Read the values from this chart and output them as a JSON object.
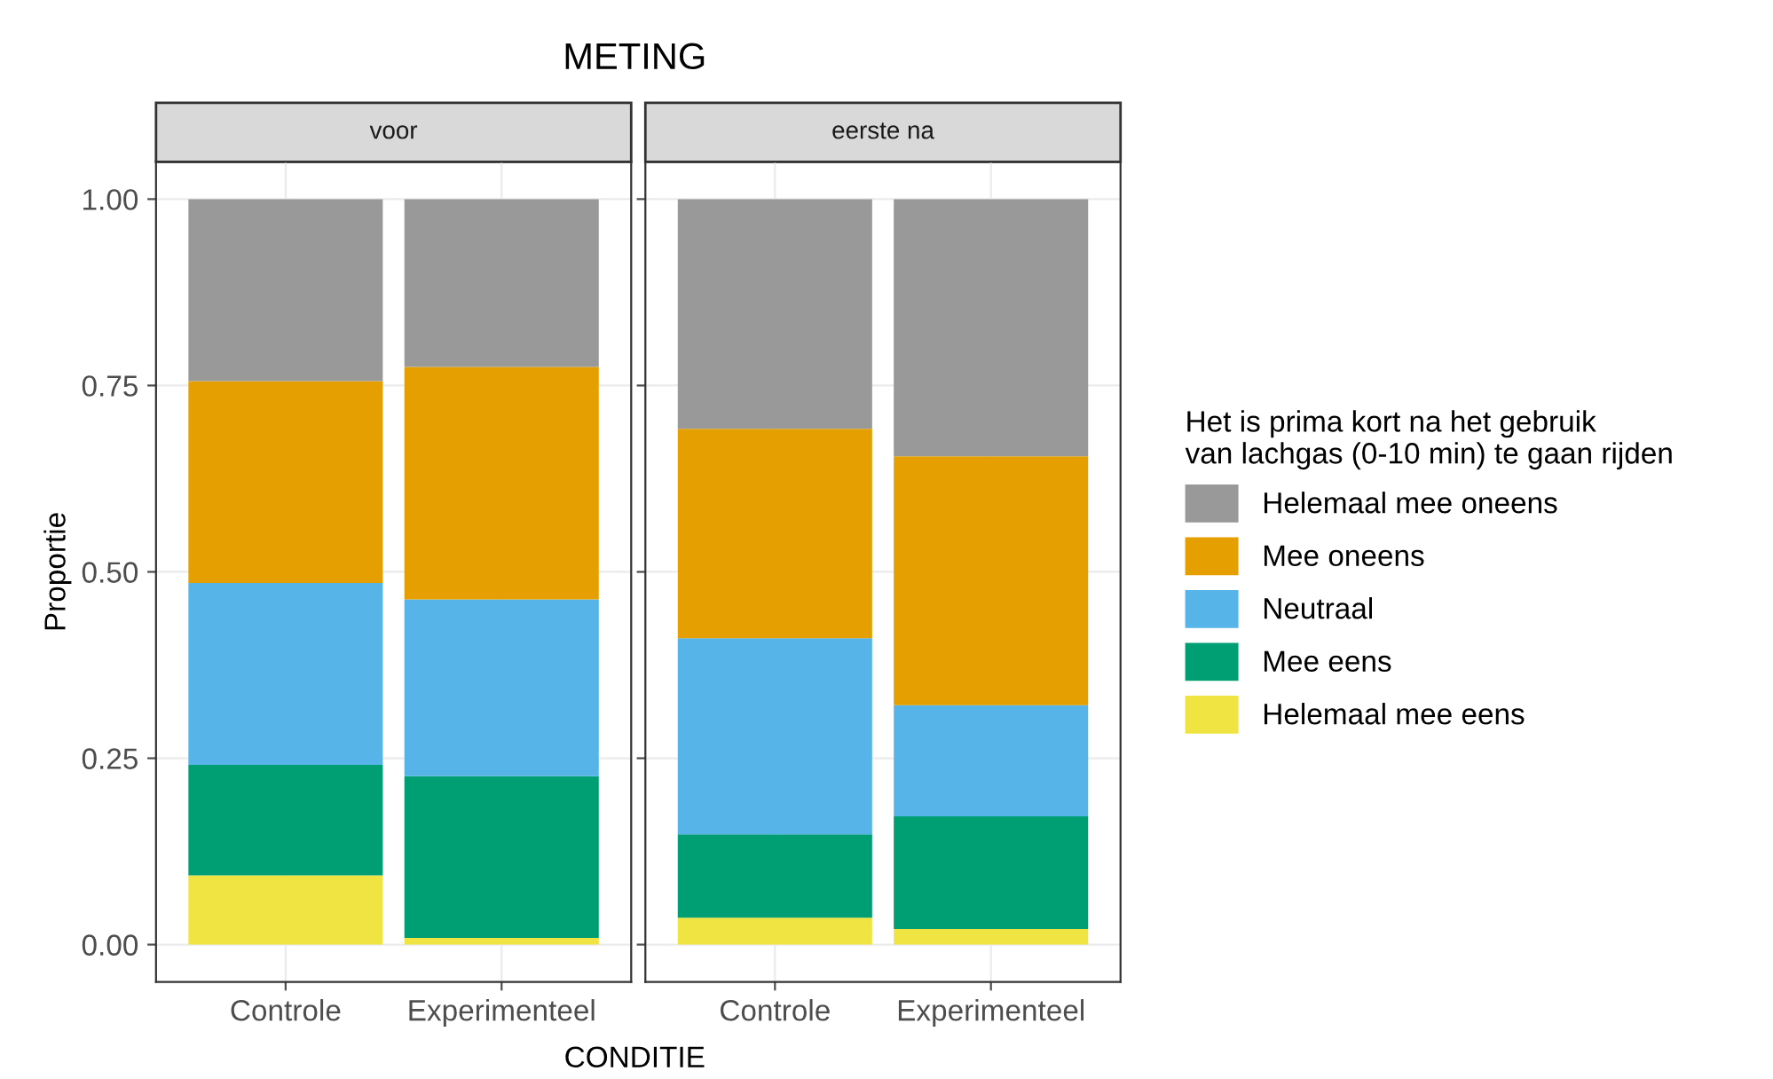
{
  "chart_data": [
    {
      "type": "bar",
      "title": "voor",
      "annotations": [
        "METING"
      ],
      "xlabel": "CONDITIE",
      "ylabel": "Proportie",
      "categories": [
        "Controle",
        "Experimenteel"
      ],
      "stacked": true,
      "ylim": [
        -0.05,
        1.05
      ],
      "yticks": [
        {
          "value": 0,
          "label": "0.00"
        },
        {
          "value": 0.25,
          "label": "0.25"
        },
        {
          "value": 0.5,
          "label": "0.50"
        },
        {
          "value": 0.75,
          "label": "0.75"
        },
        {
          "value": 1,
          "label": "1.00"
        }
      ],
      "grid": true,
      "legend": false,
      "series": [
        {
          "color": "#f0e442",
          "values": [
            0.093,
            0.009
          ]
        },
        {
          "color": "#009e73",
          "values": [
            0.148,
            0.217
          ]
        },
        {
          "color": "#56b4e9",
          "values": [
            0.244,
            0.237
          ]
        },
        {
          "color": "#e69f00",
          "values": [
            0.271,
            0.312
          ]
        },
        {
          "color": "#999999",
          "values": [
            0.244,
            0.225
          ]
        }
      ]
    },
    {
      "type": "bar",
      "title": "eerste na",
      "categories": [
        "Controle",
        "Experimenteel"
      ],
      "stacked": true,
      "ylim": [
        -0.05,
        1.05
      ],
      "yticks": [
        {
          "value": 0,
          "label": null
        },
        {
          "value": 0.25,
          "label": null
        },
        {
          "value": 0.5,
          "label": null
        },
        {
          "value": 0.75,
          "label": null
        },
        {
          "value": 1,
          "label": null
        }
      ],
      "tick_labels": "x",
      "grid": true,
      "legend": "right",
      "legend_title": "Het is prima kort na het gebruik\nvan lachgas (0-10 min) te gaan rijden",
      "series": [
        {
          "name": "Helemaal mee eens",
          "color": "#f0e442",
          "values": [
            0.036,
            0.021
          ]
        },
        {
          "name": "Mee eens",
          "color": "#009e73",
          "values": [
            0.112,
            0.151
          ]
        },
        {
          "name": "Neutraal",
          "color": "#56b4e9",
          "values": [
            0.263,
            0.149
          ]
        },
        {
          "name": "Mee oneens",
          "color": "#e69f00",
          "values": [
            0.281,
            0.334
          ]
        },
        {
          "name": "Helemaal mee oneens",
          "color": "#999999",
          "values": [
            0.308,
            0.345
          ]
        }
      ]
    }
  ]
}
